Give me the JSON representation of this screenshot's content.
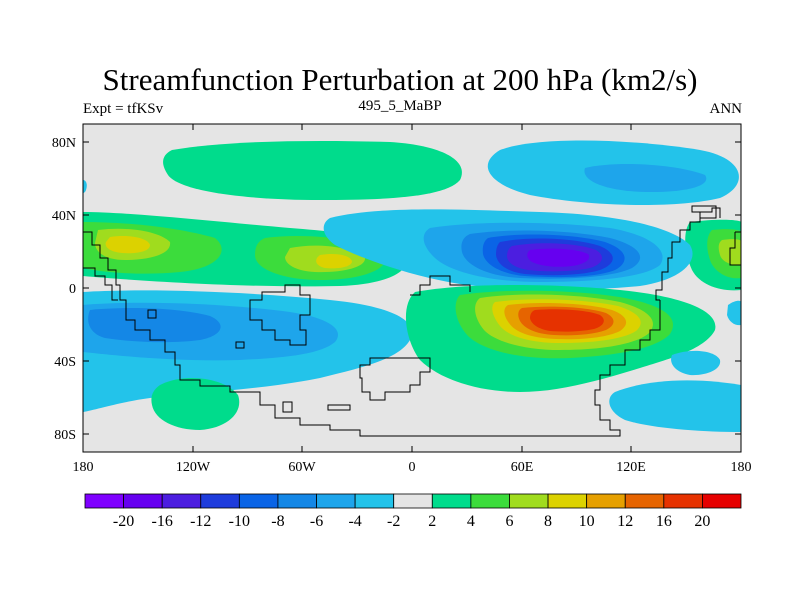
{
  "header": {
    "title": "Streamfunction Perturbation at 200 hPa (km2/s)",
    "left_label": "Expt = tfKSv",
    "center_label": "495_5_MaBP",
    "right_label": "ANN"
  },
  "map": {
    "y_ticks": [
      "80N",
      "40N",
      "0",
      "40S",
      "80S"
    ],
    "x_ticks": [
      "180",
      "120W",
      "60W",
      "0",
      "60E",
      "120E",
      "180"
    ]
  },
  "colorbar": {
    "labels": [
      "-20",
      "-16",
      "-12",
      "-10",
      "-8",
      "-6",
      "-4",
      "-2",
      "2",
      "4",
      "6",
      "8",
      "10",
      "12",
      "16",
      "20"
    ],
    "colors": [
      "#7f00ff",
      "#6600f0",
      "#4c1ee0",
      "#1e3cdc",
      "#0a64e6",
      "#1487e6",
      "#1ea5eb",
      "#23c3ea",
      "#e5e5e5",
      "#00dc8c",
      "#3cdc3c",
      "#a0dc1e",
      "#dcd200",
      "#e6a000",
      "#e66400",
      "#e63200",
      "#e60000"
    ]
  },
  "colors": {
    "land_outline": "#000000",
    "background_zero": "#e5e5e5"
  }
}
